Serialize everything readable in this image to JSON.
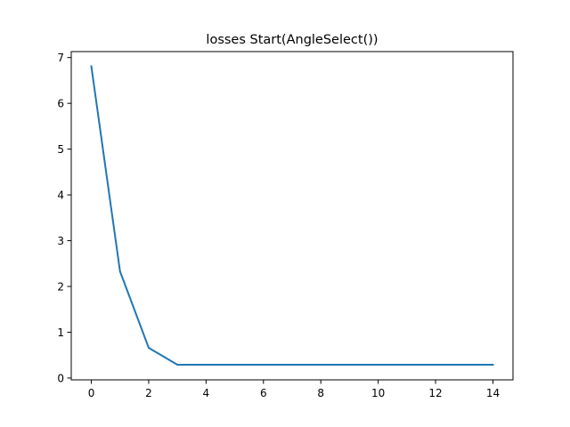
{
  "chart_data": {
    "type": "line",
    "title": "losses Start(AngleSelect())",
    "xlabel": "",
    "ylabel": "",
    "x": [
      0,
      1,
      2,
      3,
      4,
      5,
      6,
      7,
      8,
      9,
      10,
      11,
      12,
      13,
      14
    ],
    "series": [
      {
        "values": [
          6.81,
          2.33,
          0.66,
          0.29,
          0.29,
          0.29,
          0.29,
          0.29,
          0.29,
          0.29,
          0.29,
          0.29,
          0.29,
          0.29,
          0.29
        ],
        "color": "#1f77b4"
      }
    ],
    "xlim": [
      -0.7,
      14.7
    ],
    "ylim": [
      -0.04,
      7.13
    ],
    "xticks": [
      0,
      2,
      4,
      6,
      8,
      10,
      12,
      14
    ],
    "yticks": [
      0,
      1,
      2,
      3,
      4,
      5,
      6,
      7
    ],
    "grid": false,
    "legend": "none"
  }
}
